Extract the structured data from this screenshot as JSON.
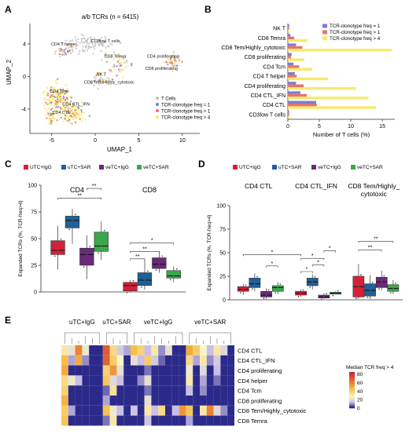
{
  "panels": {
    "a": {
      "letter": "A",
      "title": "a/b TCRs (n = 6415)",
      "xlabel": "UMAP_1",
      "ylabel": "UMAP_2"
    },
    "b": {
      "letter": "B"
    },
    "c": {
      "letter": "C"
    },
    "d": {
      "letter": "D"
    },
    "e": {
      "letter": "E"
    }
  },
  "colors": {
    "gray": "#bfbfbf",
    "freq_eq_1": "#7b7bd3",
    "freq_gt_1": "#e7736e",
    "freq_gt_4": "#f7e96a",
    "UTC_IgG": "#d6203a",
    "uTC_SAR": "#1f5f9a",
    "veTC_IgG": "#6a2a78",
    "veTC_SAR": "#3aa84a",
    "heat_low": "#2b2a8a",
    "heat_mid": "#f6f0c0",
    "heat_high": "#c9242c"
  },
  "chart_data": [
    {
      "id": "a",
      "type": "scatter",
      "title": "a/b TCRs (n = 6415)",
      "xlabel": "UMAP_1",
      "ylabel": "UMAP_2",
      "xlim": [
        -7.5,
        12
      ],
      "ylim": [
        -7,
        6.5
      ],
      "xticks": [
        -5,
        0,
        5,
        10
      ],
      "yticks": [
        -4,
        0,
        4
      ],
      "legend": [
        "T Cells",
        "TCR-clonotype freq = 1",
        "TCR-clonotype freq > 1",
        "TCR-clonotype freq > 4"
      ],
      "cluster_labels": [
        {
          "text": "CD3low T cells",
          "x": 1.2,
          "y": 4.2
        },
        {
          "text": "CD4 T helper",
          "x": -3.6,
          "y": 3.8
        },
        {
          "text": "CD8 Temra",
          "x": 2.3,
          "y": 2.3
        },
        {
          "text": "CD4 proliferating",
          "x": 7.8,
          "y": 2.3
        },
        {
          "text": "CD8 proliferating",
          "x": 7.6,
          "y": 0.8
        },
        {
          "text": "NK T",
          "x": 0.7,
          "y": 0.1
        },
        {
          "text": "CD8 Tem/Highly_cytotoxic",
          "x": 1.6,
          "y": -0.9
        },
        {
          "text": "CD4 Tcm",
          "x": -4.2,
          "y": -2.0
        },
        {
          "text": "CD4 CTL_IFN",
          "x": -2.2,
          "y": -3.6
        },
        {
          "text": "CD4 CTL",
          "x": -3.9,
          "y": -4.6
        }
      ]
    },
    {
      "id": "b",
      "type": "bar",
      "orientation": "horizontal",
      "categories": [
        "NK T",
        "CD8 Temra",
        "CD8 Tem/Highly_cytotoxic",
        "CD8 proliferating",
        "CD4 Tcm",
        "CD4 T helper",
        "CD4 proliferating",
        "CD4 CTL_IFN",
        "CD4 CTL",
        "CD3low T cells"
      ],
      "series": [
        {
          "name": "TCR-clonotype freq = 1",
          "values": [
            0.2,
            0.4,
            1.3,
            0.6,
            0.9,
            1.1,
            1.3,
            2.0,
            4.5,
            0.2
          ]
        },
        {
          "name": "TCR-clonotype freq > 1",
          "values": [
            0.2,
            1.0,
            2.3,
            0.5,
            1.8,
            1.4,
            2.5,
            3.0,
            4.6,
            0.2
          ]
        },
        {
          "name": "TCR-clonotype freq > 4",
          "values": [
            0.2,
            3.1,
            16.5,
            2.6,
            3.9,
            6.4,
            10.8,
            12.8,
            14.0,
            0.3
          ]
        }
      ],
      "xlabel": "Number of T cells (%)",
      "xlim": [
        0,
        17
      ],
      "xticks": [
        0,
        5,
        10,
        15
      ]
    },
    {
      "id": "c",
      "type": "box",
      "legend": [
        "UTC+IgG",
        "uTC+SAR",
        "veTC+IgG",
        "veTC+SAR"
      ],
      "ylabel": "Expanded TCRs (%, TCR-freq>4)",
      "ylim": [
        0,
        100
      ],
      "yticks": [
        0,
        25,
        50,
        75,
        100
      ],
      "groups": [
        {
          "name": "CD4",
          "boxes": [
            {
              "min": 21,
              "q1": 35,
              "median": 39,
              "q3": 48,
              "max": 62
            },
            {
              "min": 45,
              "q1": 60,
              "median": 67,
              "q3": 71,
              "max": 78
            },
            {
              "min": 12,
              "q1": 25,
              "median": 35,
              "q3": 41,
              "max": 53
            },
            {
              "min": 30,
              "q1": 38,
              "median": 43,
              "q3": 56,
              "max": 66
            }
          ]
        },
        {
          "name": "CD8",
          "boxes": [
            {
              "min": 0,
              "q1": 1,
              "median": 6,
              "q3": 9,
              "max": 11
            },
            {
              "min": 2,
              "q1": 6,
              "median": 11,
              "q3": 18,
              "max": 30
            },
            {
              "min": 18,
              "q1": 22,
              "median": 26,
              "q3": 32,
              "max": 38
            },
            {
              "min": 9,
              "q1": 13,
              "median": 15,
              "q3": 20,
              "max": 24
            }
          ]
        }
      ],
      "significance": [
        {
          "group": "CD4",
          "from": 0,
          "to": 3,
          "label": "**"
        },
        {
          "group": "CD4",
          "from": 2,
          "to": 3,
          "label": "**"
        },
        {
          "group": "CD8",
          "from": 0,
          "to": 3,
          "label": "*"
        },
        {
          "group": "CD8",
          "from": 0,
          "to": 2,
          "label": "**"
        },
        {
          "group": "CD8",
          "from": 0,
          "to": 1,
          "label": "**"
        }
      ]
    },
    {
      "id": "d",
      "type": "box",
      "legend": [
        "UTC+IgG",
        "uTC+SAR",
        "veTC+IgG",
        "veTC+SAR"
      ],
      "ylabel": "Expanded TCRs (%, TCR-freq>4)",
      "ylim": [
        0,
        100
      ],
      "yticks": [
        0,
        25,
        50,
        75,
        100
      ],
      "groups": [
        {
          "name": "CD4 CTL",
          "boxes": [
            {
              "min": 5,
              "q1": 9,
              "median": 11,
              "q3": 14,
              "max": 17
            },
            {
              "min": 9,
              "q1": 13,
              "median": 17,
              "q3": 23,
              "max": 28
            },
            {
              "min": 1,
              "q1": 3,
              "median": 5,
              "q3": 9,
              "max": 12
            },
            {
              "min": 6,
              "q1": 9,
              "median": 13,
              "q3": 15,
              "max": 19
            }
          ]
        },
        {
          "name": "CD4 CTL_IFN",
          "boxes": [
            {
              "min": 3,
              "q1": 5,
              "median": 7,
              "q3": 9,
              "max": 11
            },
            {
              "min": 11,
              "q1": 15,
              "median": 19,
              "q3": 23,
              "max": 27
            },
            {
              "min": 1,
              "q1": 2,
              "median": 3,
              "q3": 5,
              "max": 7
            },
            {
              "min": 6,
              "q1": 6,
              "median": 7,
              "q3": 8,
              "max": 9
            }
          ]
        },
        {
          "name": "CD8 Tem/Highly_\ncytotoxic",
          "boxes": [
            {
              "min": 1,
              "q1": 3,
              "median": 14,
              "q3": 25,
              "max": 38
            },
            {
              "min": 1,
              "q1": 4,
              "median": 10,
              "q3": 17,
              "max": 26
            },
            {
              "min": 10,
              "q1": 13,
              "median": 19,
              "q3": 24,
              "max": 31
            },
            {
              "min": 6,
              "q1": 9,
              "median": 12,
              "q3": 16,
              "max": 21
            }
          ]
        }
      ],
      "significance": [
        {
          "group": 0,
          "from": 2,
          "to": 3,
          "label": "*"
        },
        {
          "group": 0,
          "from": 0,
          "to": "g1_0",
          "label": "*"
        },
        {
          "group": 1,
          "from": 0,
          "to": 1,
          "label": "*"
        },
        {
          "group": 1,
          "from": 1,
          "to": 2,
          "label": "*"
        },
        {
          "group": 1,
          "from": 0,
          "to": 2,
          "label": "*"
        },
        {
          "group": 1,
          "from": 2,
          "to": 3,
          "label": "*"
        },
        {
          "group": 2,
          "from": 0,
          "to": 2,
          "label": "**"
        },
        {
          "group": 2,
          "from": 0,
          "to": 3,
          "label": "**"
        }
      ]
    },
    {
      "id": "e",
      "type": "heatmap",
      "column_groups": [
        {
          "name": "uTC+IgG",
          "cols": 6
        },
        {
          "name": "uTC+SAR",
          "cols": 4
        },
        {
          "name": "veTC+IgG",
          "cols": 8
        },
        {
          "name": "veTC+SAR",
          "cols": 7
        }
      ],
      "rows": [
        "CD4 CTL",
        "CD4 CTL_IFN",
        "CD4 proliferating",
        "CD4 helper",
        "CD4 Tcm",
        "CD8 proliferating",
        "CD8 Tem/Highly_cytotoxic",
        "CD8 Temra"
      ],
      "legend_title": "Median TCR freq > 4",
      "legend_ticks": [
        0,
        20,
        40,
        60,
        80
      ],
      "values": [
        [
          30,
          20,
          60,
          22,
          0,
          0,
          70,
          35,
          15,
          10,
          45,
          38,
          12,
          30,
          8,
          20,
          0,
          0,
          50,
          40,
          25,
          12,
          30,
          18,
          0
        ],
        [
          45,
          10,
          50,
          8,
          0,
          0,
          68,
          40,
          25,
          0,
          20,
          12,
          40,
          15,
          5,
          0,
          0,
          0,
          35,
          10,
          30,
          8,
          15,
          0,
          0
        ],
        [
          50,
          0,
          0,
          0,
          0,
          0,
          38,
          55,
          20,
          0,
          0,
          0,
          6,
          0,
          0,
          0,
          0,
          0,
          22,
          0,
          18,
          0,
          12,
          0,
          0
        ],
        [
          35,
          22,
          12,
          0,
          0,
          0,
          42,
          18,
          12,
          0,
          0,
          8,
          20,
          0,
          0,
          0,
          0,
          0,
          30,
          0,
          10,
          0,
          6,
          0,
          0
        ],
        [
          38,
          0,
          0,
          0,
          0,
          0,
          5,
          32,
          0,
          0,
          0,
          0,
          6,
          0,
          0,
          0,
          0,
          0,
          12,
          0,
          8,
          0,
          0,
          0,
          0
        ],
        [
          48,
          0,
          0,
          0,
          0,
          0,
          10,
          0,
          0,
          0,
          0,
          0,
          20,
          0,
          0,
          0,
          0,
          0,
          0,
          0,
          0,
          0,
          0,
          0,
          0
        ],
        [
          40,
          10,
          0,
          0,
          0,
          0,
          44,
          22,
          12,
          0,
          14,
          0,
          30,
          12,
          35,
          0,
          12,
          55,
          42,
          0,
          30,
          60,
          18,
          8,
          0
        ],
        [
          42,
          0,
          0,
          0,
          0,
          0,
          6,
          30,
          0,
          0,
          0,
          0,
          14,
          0,
          0,
          0,
          0,
          0,
          10,
          0,
          0,
          0,
          0,
          0,
          0
        ]
      ]
    }
  ]
}
